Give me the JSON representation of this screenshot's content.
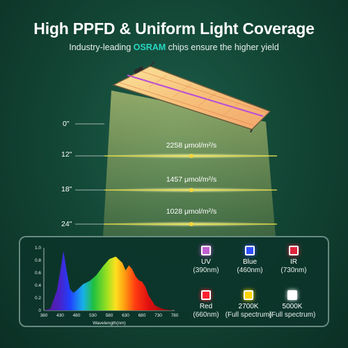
{
  "header": {
    "title": "High PPFD & Uniform Light Coverage",
    "subtitle_prefix": "Industry-leading ",
    "subtitle_highlight": "OSRAM",
    "subtitle_suffix": " chips ensure the higher yield"
  },
  "depths": [
    "0\"",
    "12\"",
    "18\"",
    "24\""
  ],
  "ppfd_readings": [
    "2258 μmol/m²/s",
    "1457 μmol/m²/s",
    "1028 μmol/m²/s"
  ],
  "spectrum_chart": {
    "type": "area",
    "xlabel": "Wavelength(nm)",
    "x_ticks": [
      "380",
      "430",
      "480",
      "530",
      "580",
      "630",
      "680",
      "730",
      "780"
    ],
    "y_ticks": [
      "0",
      "0.2",
      "0.4",
      "0.6",
      "0.8",
      "1.0"
    ],
    "xlim": [
      380,
      780
    ],
    "ylim": [
      0,
      1.0
    ],
    "x": [
      380,
      400,
      420,
      430,
      440,
      450,
      460,
      470,
      480,
      500,
      520,
      540,
      560,
      580,
      600,
      620,
      630,
      640,
      650,
      660,
      670,
      680,
      690,
      700,
      720,
      740,
      760,
      780
    ],
    "y": [
      0.0,
      0.03,
      0.32,
      0.62,
      0.95,
      0.62,
      0.34,
      0.28,
      0.32,
      0.42,
      0.47,
      0.56,
      0.7,
      0.82,
      0.86,
      0.76,
      0.64,
      0.72,
      0.66,
      0.55,
      0.48,
      0.46,
      0.38,
      0.24,
      0.08,
      0.03,
      0.01,
      0.0
    ]
  },
  "chips": [
    {
      "name": "UV",
      "detail": "(390nm)",
      "color": "#c060d0"
    },
    {
      "name": "Blue",
      "detail": "(460nm)",
      "color": "#3050ff"
    },
    {
      "name": "IR",
      "detail": "(730nm)",
      "color": "#e0243c"
    },
    {
      "name": "Red",
      "detail": "(660nm)",
      "color": "#ff2030"
    },
    {
      "name": "2700K",
      "detail": "(Full spectrum)",
      "color": "#ffd400"
    },
    {
      "name": "5000K",
      "detail": "(Full spectrum)",
      "color": "#ffffff"
    }
  ]
}
